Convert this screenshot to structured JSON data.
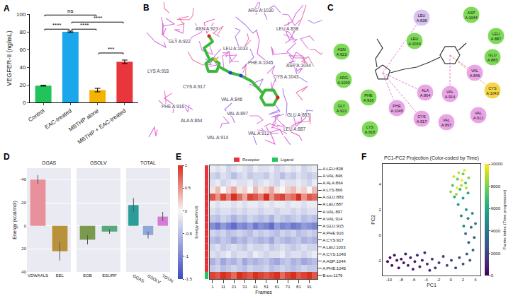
{
  "chart_data": [
    {
      "panel": "A",
      "type": "bar",
      "categories": [
        "Control",
        "EAC-treated",
        "MBTHP alone",
        "MBTHP + EAC-treated"
      ],
      "values": [
        19,
        80,
        14,
        46
      ],
      "errors": [
        0.5,
        0.8,
        2,
        2
      ],
      "colors": [
        "#21c45a",
        "#1aa7ec",
        "#f5b301",
        "#e8363c"
      ],
      "y_label": "VEGFER-II (ng/mL)",
      "ylim": [
        0,
        100
      ],
      "yticks": [
        0,
        20,
        40,
        60,
        80,
        100
      ],
      "grid": false,
      "comparisons": [
        {
          "from": "Control",
          "to": "MBTHP alone",
          "y": 99,
          "label": "ns"
        },
        {
          "from": "Control",
          "to": "EAC-treated",
          "y": 83,
          "label": "****"
        },
        {
          "from": "EAC-treated",
          "to": "MBTHP + EAC-treated",
          "y": 91,
          "label": "****"
        },
        {
          "from": "EAC-treated",
          "to": "MBTHP alone",
          "y": 83,
          "label": "****"
        },
        {
          "from": "MBTHP alone",
          "to": "MBTHP + EAC-treated",
          "y": 56,
          "label": "***"
        }
      ]
    },
    {
      "panel": "D",
      "type": "bar",
      "y_label": "Energy (kcal/mol)",
      "ylim": [
        40,
        -50
      ],
      "yticks": [
        -40,
        -20,
        0,
        20,
        40
      ],
      "grid": true,
      "groups": [
        {
          "title": "GGAS",
          "categories": [
            "VDWAALS",
            "EEL"
          ],
          "values": [
            -40,
            22
          ],
          "errors": [
            4,
            8
          ],
          "colors": [
            "#e8909c",
            "#b8923a"
          ]
        },
        {
          "title": "GSOLV",
          "categories": [
            "EGB",
            "ESURF"
          ],
          "values": [
            12,
            5
          ],
          "errors": [
            4,
            2
          ],
          "colors": [
            "#7a9a4e",
            "#5aa87a"
          ]
        },
        {
          "title": "TOTAL",
          "categories": [
            "GGAS",
            "GSOLV",
            "TOTAL"
          ],
          "values": [
            -18,
            8,
            -8
          ],
          "errors": [
            6,
            3,
            4
          ],
          "colors": [
            "#2a9d9a",
            "#8fa8d8",
            "#d37bd6"
          ]
        }
      ]
    },
    {
      "panel": "E",
      "type": "heatmap",
      "x_label": "Frames",
      "x": [
        1,
        6,
        11,
        16,
        21,
        26,
        31,
        36,
        41,
        46,
        51,
        56,
        61,
        66,
        71,
        76,
        81,
        86,
        91,
        96
      ],
      "xlim": [
        -1.5,
        98.5
      ],
      "xticks": [
        1,
        11,
        21,
        31,
        41,
        51,
        61,
        71,
        81,
        91
      ],
      "rows": [
        "A:LEU:838",
        "A:VAL:846",
        "A:ALA:864",
        "A:LYS:866",
        "A:GLU:883",
        "A:LEU:887",
        "A:VAL:897",
        "A:VAL:914",
        "A:GLU:915",
        "A:PHE:916",
        "A:CYS:917",
        "A:LEU:1033",
        "A:CYS:1043",
        "A:ASP:1044",
        "A:PHE:1045",
        "B:sm:1176"
      ],
      "row_groups": [
        "Receptor",
        "Receptor",
        "Receptor",
        "Receptor",
        "Receptor",
        "Receptor",
        "Receptor",
        "Receptor",
        "Receptor",
        "Receptor",
        "Receptor",
        "Receptor",
        "Receptor",
        "Receptor",
        "Receptor",
        "Ligand"
      ],
      "groups": [
        {
          "name": "Receptor",
          "color": "#e8323c"
        },
        {
          "name": "Ligand",
          "color": "#22c55e"
        }
      ],
      "cells": [
        [
          -0.1,
          -0.2,
          -0.1,
          -0.3,
          -0.2,
          -0.1,
          -0.2,
          -0.3,
          -0.1,
          -0.2,
          -0.2,
          -0.1,
          -0.3,
          -0.2,
          -0.1,
          -0.2,
          -0.1,
          -0.3,
          -0.2,
          -0.1
        ],
        [
          -0.3,
          -0.4,
          -0.2,
          -0.3,
          -0.5,
          -0.3,
          -0.2,
          -0.4,
          -0.3,
          -0.3,
          -0.4,
          -0.2,
          -0.3,
          -0.5,
          -0.3,
          -0.4,
          -0.2,
          -0.3,
          -0.4,
          -0.3
        ],
        [
          -0.2,
          -0.1,
          -0.3,
          -0.2,
          -0.1,
          -0.2,
          -0.2,
          -0.1,
          -0.3,
          -0.2,
          -0.1,
          -0.2,
          -0.3,
          -0.1,
          -0.2,
          -0.2,
          -0.1,
          -0.2,
          -0.3,
          -0.1
        ],
        [
          0.1,
          0.3,
          0.0,
          0.2,
          0.4,
          0.1,
          0.2,
          0.0,
          0.3,
          0.1,
          0.2,
          0.4,
          0.1,
          0.0,
          0.2,
          0.3,
          0.1,
          0.2,
          0.0,
          0.3
        ],
        [
          0.8,
          0.5,
          0.9,
          0.6,
          1.0,
          0.7,
          0.4,
          0.9,
          0.8,
          0.6,
          1.0,
          0.5,
          0.8,
          0.9,
          0.6,
          0.7,
          1.0,
          0.5,
          0.8,
          0.7
        ],
        [
          -0.1,
          -0.2,
          -0.1,
          -0.1,
          -0.2,
          -0.1,
          -0.2,
          -0.1,
          -0.1,
          -0.2,
          -0.1,
          -0.2,
          -0.1,
          -0.1,
          -0.2,
          -0.1,
          -0.1,
          -0.2,
          -0.1,
          -0.1
        ],
        [
          -0.2,
          -0.3,
          -0.2,
          -0.2,
          -0.3,
          -0.2,
          -0.3,
          -0.2,
          -0.2,
          -0.3,
          -0.2,
          -0.2,
          -0.3,
          -0.2,
          -0.2,
          -0.3,
          -0.2,
          -0.3,
          -0.2,
          -0.2
        ],
        [
          -0.4,
          -0.5,
          -0.3,
          -0.4,
          -0.6,
          -0.4,
          -0.5,
          -0.3,
          -0.4,
          -0.5,
          -0.4,
          -0.6,
          -0.3,
          -0.4,
          -0.5,
          -0.4,
          -0.3,
          -0.5,
          -0.4,
          -0.5
        ],
        [
          -0.9,
          -1.1,
          -0.8,
          -1.0,
          -1.2,
          -0.9,
          -1.0,
          -0.8,
          -1.1,
          -0.9,
          -1.0,
          -1.2,
          -0.8,
          -1.0,
          -0.9,
          -1.1,
          -1.0,
          -0.8,
          -0.9,
          -1.0
        ],
        [
          -0.3,
          -0.4,
          -0.3,
          -0.5,
          -0.4,
          -0.3,
          -0.4,
          -0.5,
          -0.3,
          -0.4,
          -0.3,
          -0.4,
          -0.5,
          -0.3,
          -0.4,
          -0.3,
          -0.5,
          -0.4,
          -0.3,
          -0.4
        ],
        [
          -0.5,
          -0.6,
          -0.4,
          -0.5,
          -0.7,
          -0.5,
          -0.6,
          -0.4,
          -0.5,
          -0.6,
          -0.5,
          -0.7,
          -0.4,
          -0.5,
          -0.6,
          -0.5,
          -0.4,
          -0.6,
          -0.5,
          -0.6
        ],
        [
          -0.3,
          -0.2,
          -0.4,
          -0.3,
          -0.2,
          -0.3,
          -0.4,
          -0.2,
          -0.3,
          -0.3,
          -0.2,
          -0.4,
          -0.3,
          -0.2,
          -0.3,
          -0.4,
          -0.3,
          -0.2,
          -0.3,
          -0.3
        ],
        [
          -0.2,
          -0.3,
          -0.2,
          -0.1,
          -0.3,
          -0.2,
          -0.2,
          -0.3,
          -0.1,
          -0.2,
          -0.3,
          -0.2,
          -0.2,
          -0.1,
          -0.3,
          -0.2,
          -0.2,
          -0.3,
          -0.2,
          -0.1
        ],
        [
          -0.6,
          -0.4,
          -0.7,
          -0.5,
          -0.6,
          -0.4,
          -0.7,
          -0.5,
          -0.6,
          -0.5,
          -0.4,
          -0.6,
          -0.7,
          -0.5,
          -0.4,
          -0.6,
          -0.5,
          -0.7,
          -0.6,
          -0.5
        ],
        [
          -0.4,
          -0.3,
          -0.5,
          -0.4,
          -0.3,
          -0.4,
          -0.5,
          -0.3,
          -0.4,
          -0.4,
          -0.3,
          -0.5,
          -0.4,
          -0.3,
          -0.4,
          -0.5,
          -0.4,
          -0.3,
          -0.4,
          -0.4
        ],
        [
          0.9,
          0.8,
          1.0,
          0.9,
          0.7,
          1.0,
          0.9,
          0.8,
          1.0,
          0.9,
          0.8,
          0.9,
          1.0,
          0.7,
          0.9,
          1.0,
          0.8,
          0.9,
          1.0,
          0.8
        ]
      ],
      "colorbar": {
        "title": "Energy (kcal/mol)",
        "range": [
          -1.5,
          1
        ],
        "ticks": [
          -1.5,
          -1,
          -0.5,
          0,
          0.5,
          1
        ]
      }
    },
    {
      "panel": "F",
      "type": "scatter",
      "title": "PC1-PC2 Projection (Color-coded by Time)",
      "x_label": "PC1",
      "y_label": "PC2",
      "xlim": [
        -11,
        4.8
      ],
      "xticks": [
        -10,
        -8,
        -6,
        -4,
        -2,
        0,
        2,
        4
      ],
      "ylim": [
        -3.2,
        5.6
      ],
      "yticks": [
        -2,
        0,
        2,
        4
      ],
      "grid": false,
      "x": [
        -10.2,
        -9.8,
        -9.5,
        -9.1,
        -8.7,
        -8.4,
        -8.0,
        -7.6,
        -7.3,
        -6.9,
        -6.5,
        -6.1,
        -5.8,
        -5.4,
        -5.0,
        -4.6,
        -4.2,
        -3.8,
        -3.4,
        -3.0,
        -2.5,
        -1.9,
        -1.2,
        -0.6,
        0.1,
        0.8,
        1.4,
        2.0,
        2.6,
        3.1,
        3.6,
        2.9,
        3.8,
        2.4,
        3.3,
        4.0,
        2.1,
        2.8,
        3.5,
        1.7,
        2.5,
        1.2,
        2.0,
        2.8,
        0.6,
        1.5,
        2.4,
        0.3,
        1.1,
        2.0,
        2.9,
        0.0,
        0.9,
        1.7,
        2.5,
        1.3,
        0.5,
        2.2,
        1.0,
        1.8
      ],
      "y": [
        -2.1,
        -1.8,
        -2.4,
        -1.6,
        -2.0,
        -2.6,
        -1.9,
        -2.2,
        -1.5,
        -2.4,
        -1.8,
        -2.7,
        -2.1,
        -1.6,
        -2.5,
        -2.0,
        -1.4,
        -2.3,
        -2.8,
        -1.9,
        -2.6,
        -2.2,
        -1.7,
        -2.4,
        -2.0,
        -2.6,
        -1.8,
        -2.3,
        -1.5,
        -2.0,
        -1.2,
        -0.6,
        -0.2,
        0.1,
        0.6,
        0.9,
        0.7,
        1.3,
        1.7,
        1.5,
        2.0,
        2.4,
        2.9,
        3.3,
        3.0,
        3.6,
        4.1,
        3.9,
        4.4,
        4.8,
        4.5,
        3.4,
        3.2,
        3.9,
        3.7,
        4.9,
        4.6,
        5.1,
        3.7,
        4.3
      ],
      "frame": [
        50,
        120,
        200,
        260,
        330,
        400,
        470,
        540,
        600,
        680,
        750,
        820,
        900,
        970,
        1040,
        1110,
        1180,
        1250,
        1320,
        1400,
        1480,
        1600,
        1750,
        1900,
        2050,
        2200,
        2350,
        2500,
        2700,
        2900,
        3100,
        3300,
        3500,
        3700,
        3900,
        4100,
        4300,
        4500,
        4700,
        4900,
        5100,
        5400,
        5700,
        6000,
        6300,
        6600,
        6900,
        7200,
        7500,
        7800,
        8100,
        8400,
        8600,
        8800,
        9000,
        9200,
        9400,
        9600,
        9800,
        9950
      ],
      "colorbar": {
        "title": "Frame index (Time progression)",
        "range": [
          0,
          10000
        ],
        "ticks": [
          0,
          2000,
          4000,
          6000,
          8000,
          10000
        ]
      }
    }
  ],
  "diagrams": {
    "B": {
      "panel": "B",
      "labels": [
        "ARG A:1030",
        "ASN A:923",
        "GLY A:922",
        "LEU A:1033",
        "PHE A:1045",
        "CYS A:1043",
        "ASP A:1044",
        "LYS A:918",
        "CYS A:917",
        "PHE A:916",
        "ALA A:864",
        "VAL A:846",
        "VAL A:897",
        "VAL A:914",
        "VAL A:912",
        "LEU A:887",
        "GLU A:883",
        "LEU A:838"
      ]
    },
    "C": {
      "panel": "C",
      "residues": [
        {
          "label": "LEU A:838",
          "color": "#d9c2f0"
        },
        {
          "label": "ASP A:1044",
          "color": "#7ed957"
        },
        {
          "label": "LEU A:887",
          "color": "#7ed957"
        },
        {
          "label": "GLU A:883",
          "color": "#7ed957"
        },
        {
          "label": "VAL A:846",
          "color": "#e9a5e6"
        },
        {
          "label": "LEU A:1033",
          "color": "#7ed957"
        },
        {
          "label": "ASN A:923",
          "color": "#7ed957"
        },
        {
          "label": "ARG A:1030",
          "color": "#7ed957"
        },
        {
          "label": "GLY A:922",
          "color": "#7ed957"
        },
        {
          "label": "PHE A:916",
          "color": "#7ed957"
        },
        {
          "label": "PHE A:1045",
          "color": "#e9a5e6"
        },
        {
          "label": "LYS A:918",
          "color": "#7ed957"
        },
        {
          "label": "CYS A:917",
          "color": "#e9a5e6"
        },
        {
          "label": "ALA A:864",
          "color": "#e9a5e6"
        },
        {
          "label": "VAL A:914",
          "color": "#e9a5e6"
        },
        {
          "label": "VAL A:897",
          "color": "#e9a5e6"
        },
        {
          "label": "VAL A:912",
          "color": "#e9a5e6"
        },
        {
          "label": "CYS A:1043",
          "color": "#f5d547"
        }
      ]
    }
  }
}
